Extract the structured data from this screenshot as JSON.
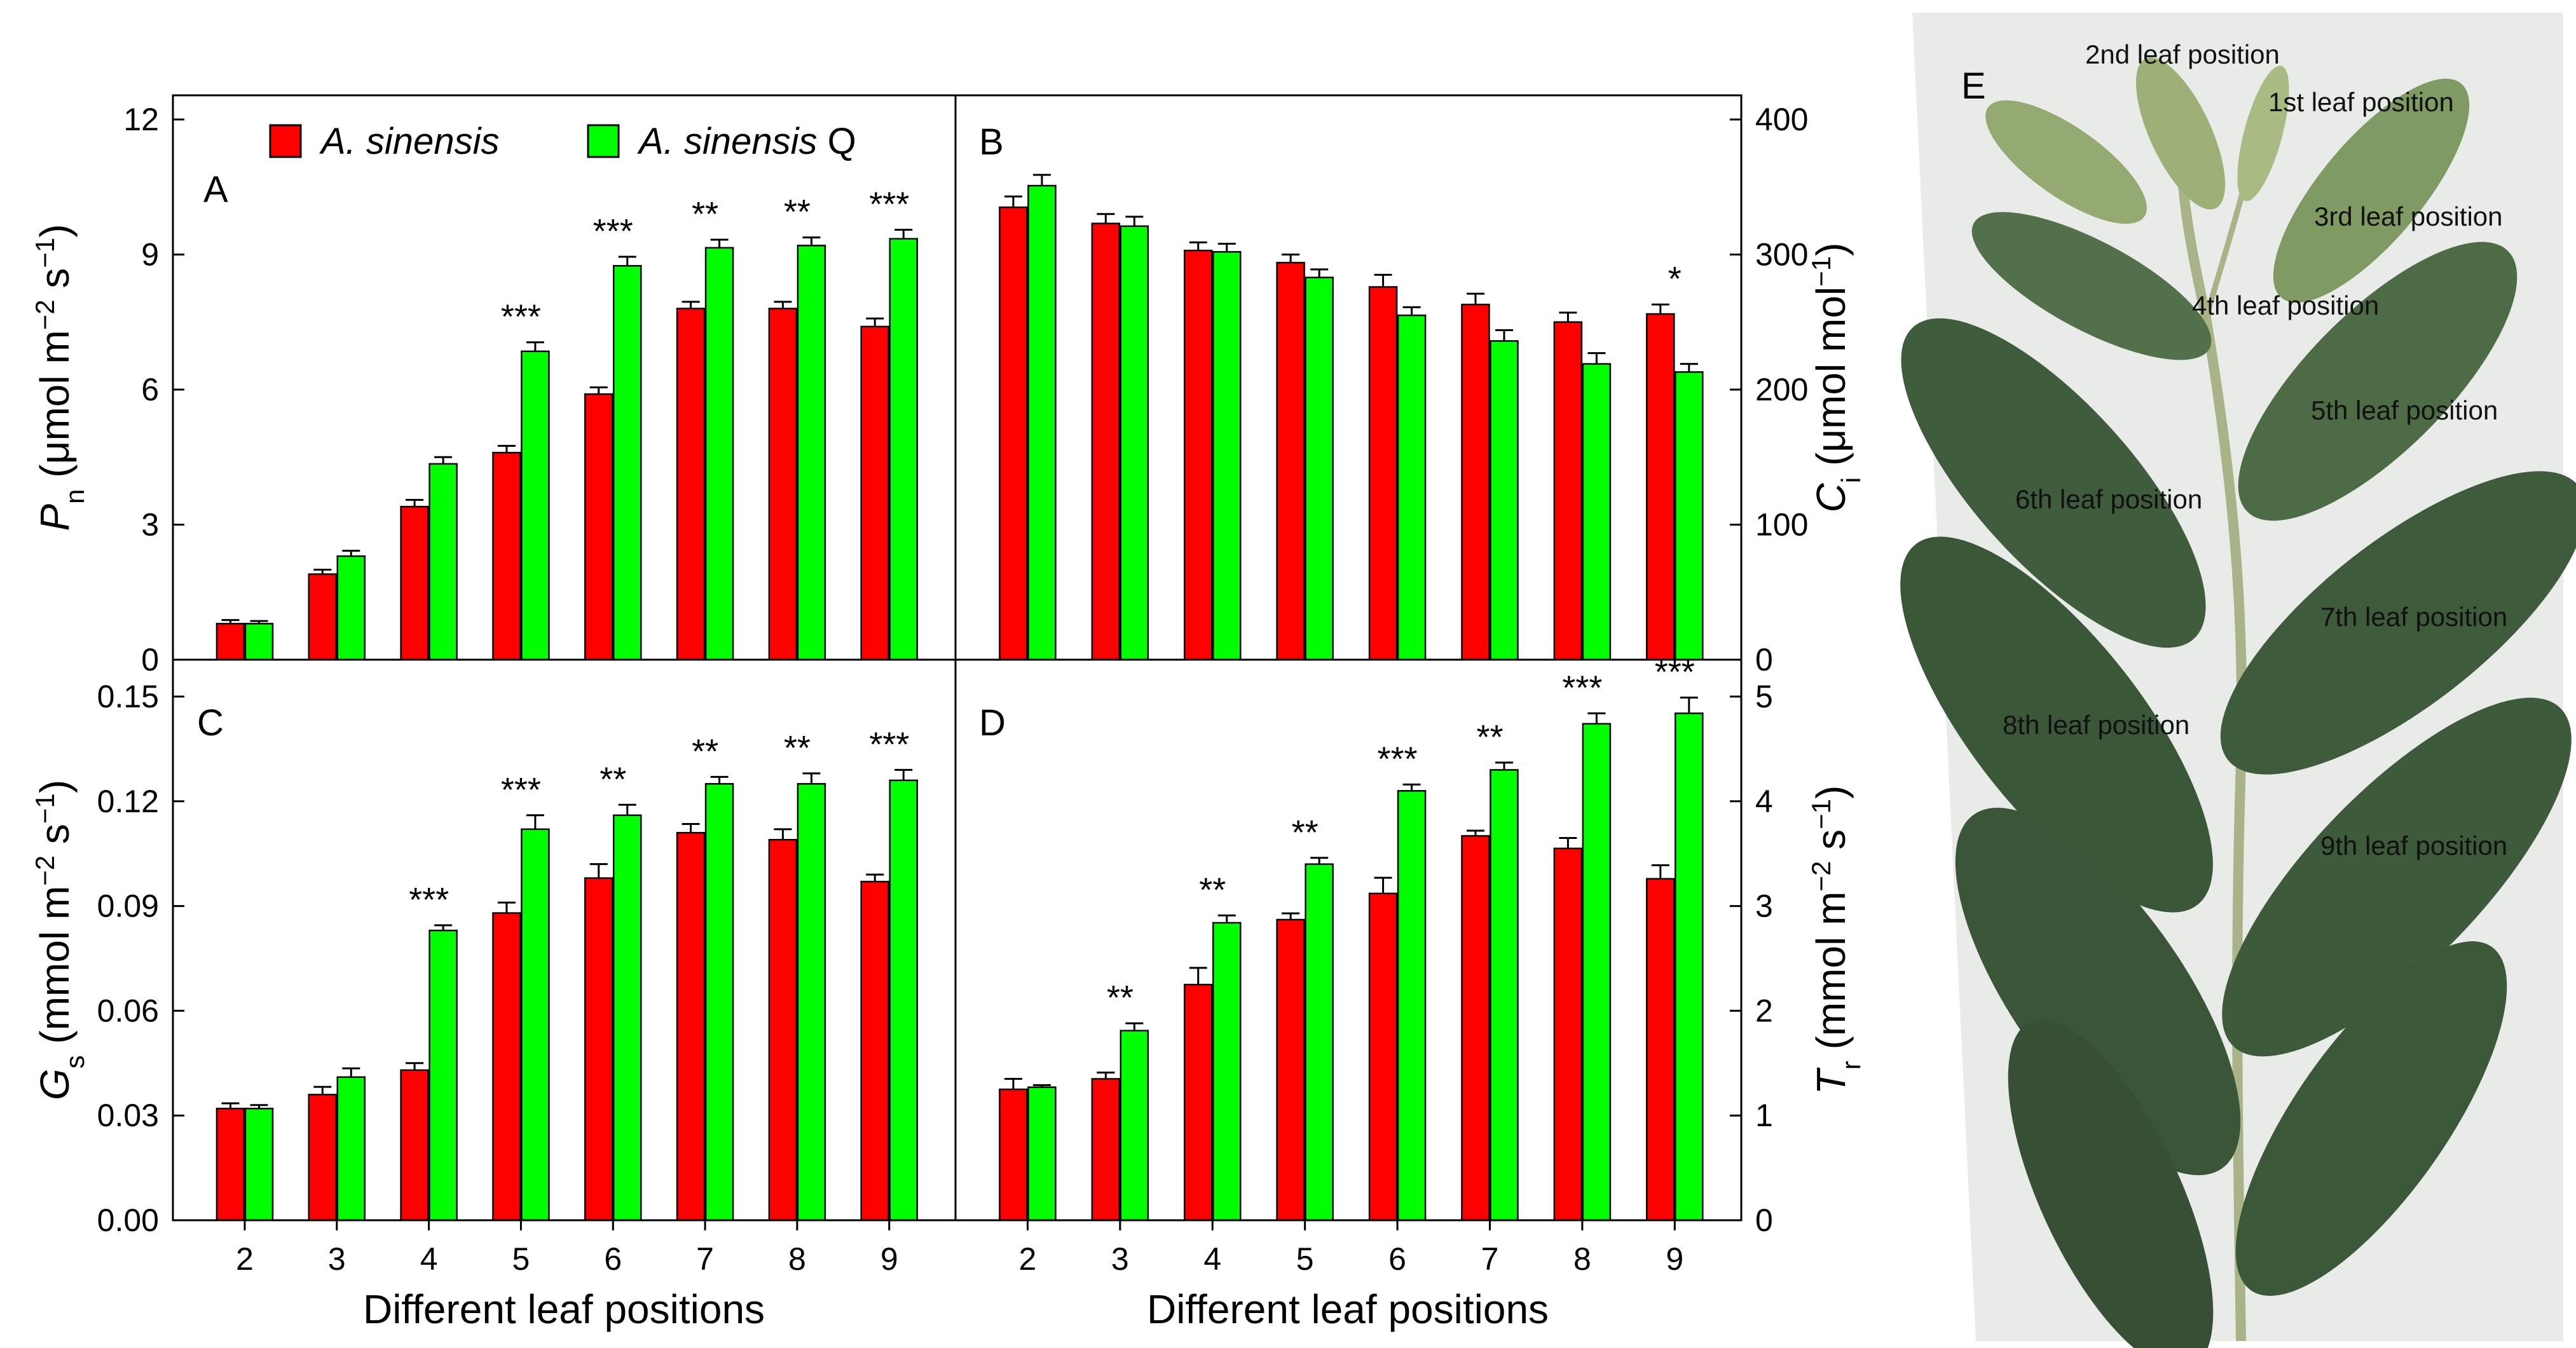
{
  "colors": {
    "series1": "#ff0000",
    "series2": "#00ff00",
    "axis": "#000000",
    "photo_bg": "#e9ebe9",
    "leaf_dark": "#3b5a3a",
    "leaf_light": "#8fa86e",
    "stem": "#a8b488"
  },
  "legend": [
    {
      "name_italic": "A. sinensis",
      "suffix": ""
    },
    {
      "name_italic": "A. sinensis",
      "suffix": " Q"
    }
  ],
  "xlabel": "Different leaf positions",
  "chart_data": [
    {
      "panel": "A",
      "type": "bar",
      "categories": [
        "2",
        "3",
        "4",
        "5",
        "6",
        "7",
        "8",
        "9"
      ],
      "ylabel": {
        "sym": "P",
        "sub": "n",
        "pre": " (μmol m",
        "e1": "−2",
        "mid": " s",
        "e2": "−1",
        "post": ")"
      },
      "ylim": [
        0,
        12
      ],
      "yticks": [
        "0",
        "3",
        "6",
        "9",
        "12"
      ],
      "series": [
        {
          "name": "A. sinensis",
          "values": [
            0.8,
            1.9,
            3.4,
            4.6,
            5.9,
            7.8,
            7.8,
            7.4
          ],
          "errors": [
            0.08,
            0.1,
            0.15,
            0.15,
            0.15,
            0.15,
            0.15,
            0.18
          ]
        },
        {
          "name": "A. sinensis Q",
          "values": [
            0.8,
            2.3,
            4.35,
            6.85,
            8.75,
            9.15,
            9.2,
            9.35
          ],
          "errors": [
            0.06,
            0.12,
            0.15,
            0.2,
            0.2,
            0.18,
            0.18,
            0.2
          ]
        }
      ],
      "significance": [
        "",
        "",
        "",
        "***",
        "***",
        "**",
        "**",
        "***"
      ]
    },
    {
      "panel": "B",
      "type": "bar",
      "categories": [
        "2",
        "3",
        "4",
        "5",
        "6",
        "7",
        "8",
        "9"
      ],
      "ylabel": {
        "sym": "C",
        "sub": "i",
        "pre": " (μmol mol",
        "e1": "−1",
        "mid": "",
        "e2": "",
        "post": ")"
      },
      "ylim": [
        0,
        400
      ],
      "yticks": [
        "0",
        "100",
        "200",
        "300",
        "400"
      ],
      "series": [
        {
          "name": "A. sinensis",
          "values": [
            335,
            323,
            303,
            294,
            276,
            263,
            250,
            256
          ],
          "errors": [
            8,
            7,
            6,
            6,
            9,
            8,
            7,
            7
          ]
        },
        {
          "name": "A. sinensis Q",
          "values": [
            351,
            321,
            302,
            283,
            255,
            236,
            219,
            213
          ],
          "errors": [
            8,
            7,
            6,
            6,
            6,
            8,
            8,
            6
          ]
        }
      ],
      "significance": [
        "",
        "",
        "",
        "",
        "",
        "",
        "",
        "*"
      ]
    },
    {
      "panel": "C",
      "type": "bar",
      "categories": [
        "2",
        "3",
        "4",
        "5",
        "6",
        "7",
        "8",
        "9"
      ],
      "ylabel": {
        "sym": "G",
        "sub": "s",
        "pre": " (mmol m",
        "e1": "−2",
        "mid": " s",
        "e2": "−1",
        "post": ")"
      },
      "ylim": [
        0,
        0.15
      ],
      "yticks": [
        "0.00",
        "0.03",
        "0.06",
        "0.09",
        "0.12",
        "0.15"
      ],
      "series": [
        {
          "name": "A. sinensis",
          "values": [
            0.032,
            0.036,
            0.043,
            0.088,
            0.098,
            0.111,
            0.109,
            0.097
          ],
          "errors": [
            0.0015,
            0.0022,
            0.002,
            0.003,
            0.004,
            0.0025,
            0.003,
            0.002
          ]
        },
        {
          "name": "A. sinensis Q",
          "values": [
            0.032,
            0.041,
            0.083,
            0.112,
            0.116,
            0.125,
            0.125,
            0.126
          ],
          "errors": [
            0.001,
            0.0025,
            0.0015,
            0.004,
            0.003,
            0.002,
            0.003,
            0.003
          ]
        }
      ],
      "significance": [
        "",
        "",
        "***",
        "***",
        "**",
        "**",
        "**",
        "***"
      ]
    },
    {
      "panel": "D",
      "type": "bar",
      "categories": [
        "2",
        "3",
        "4",
        "5",
        "6",
        "7",
        "8",
        "9"
      ],
      "ylabel": {
        "sym": "T",
        "sub": "r",
        "pre": " (mmol m",
        "e1": "−2",
        "mid": " s",
        "e2": "−1",
        "post": ")"
      },
      "ylim": [
        0,
        5
      ],
      "yticks": [
        "0",
        "1",
        "2",
        "3",
        "4",
        "5"
      ],
      "series": [
        {
          "name": "A. sinensis",
          "values": [
            1.25,
            1.35,
            2.25,
            2.87,
            3.12,
            3.67,
            3.55,
            3.26
          ],
          "errors": [
            0.1,
            0.06,
            0.16,
            0.06,
            0.15,
            0.05,
            0.1,
            0.13
          ]
        },
        {
          "name": "A. sinensis Q",
          "values": [
            1.27,
            1.81,
            2.84,
            3.4,
            4.1,
            4.3,
            4.74,
            4.84
          ],
          "errors": [
            0.02,
            0.07,
            0.07,
            0.06,
            0.06,
            0.07,
            0.1,
            0.15
          ]
        }
      ],
      "significance": [
        "",
        "**",
        "**",
        "**",
        "***",
        "**",
        "***",
        "***"
      ]
    }
  ],
  "photo": {
    "panel": "E",
    "leaf_labels": [
      "2nd leaf position",
      "1st leaf position",
      "3rd leaf position",
      "4th leaf position",
      "5th leaf position",
      "6th leaf position",
      "7th leaf position",
      "8th leaf position",
      "9th leaf position"
    ]
  }
}
